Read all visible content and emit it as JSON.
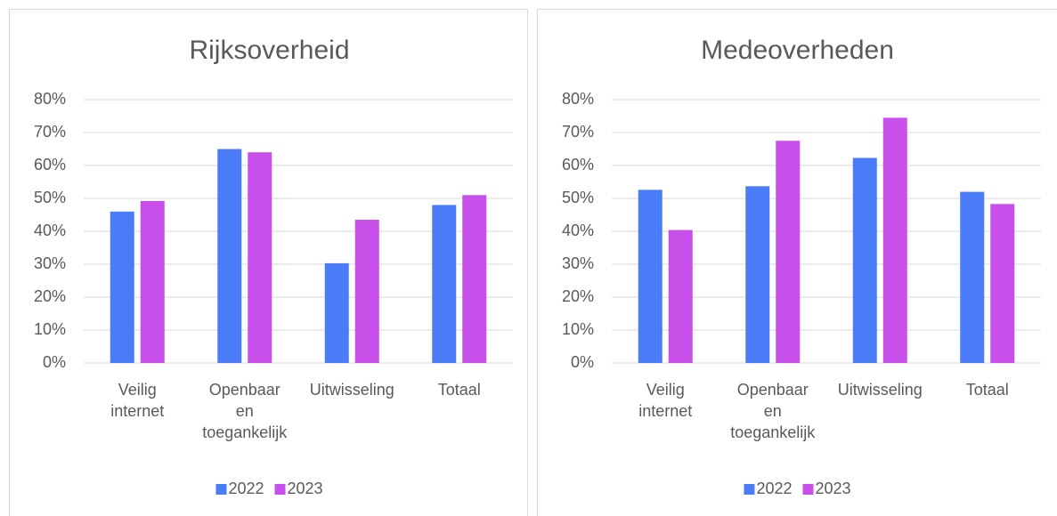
{
  "chart_data": [
    {
      "type": "bar",
      "title": "Rijksoverheid",
      "categories": [
        "Veilig internet",
        "Openbaar en toegankelijk",
        "Uitwisseling",
        "Totaal"
      ],
      "series": [
        {
          "name": "2022",
          "color": "#4a7cf7",
          "values": [
            46,
            65,
            30.3,
            48
          ]
        },
        {
          "name": "2023",
          "color": "#c94fea",
          "values": [
            49.2,
            64,
            43.5,
            51
          ]
        }
      ],
      "ylim": [
        0,
        80
      ],
      "yticks": [
        {
          "value": 0,
          "label": "0%"
        },
        {
          "value": 10,
          "label": "10%"
        },
        {
          "value": 20,
          "label": "20%"
        },
        {
          "value": 30,
          "label": "30%"
        },
        {
          "value": 40,
          "label": "40%"
        },
        {
          "value": 50,
          "label": "50%"
        },
        {
          "value": 60,
          "label": "60%"
        },
        {
          "value": 70,
          "label": "70%"
        },
        {
          "value": 80,
          "label": "80%"
        }
      ],
      "grid": true,
      "legend": "bottom"
    },
    {
      "type": "bar",
      "title": "Medeoverheden",
      "categories": [
        "Veilig internet",
        "Openbaar en toegankelijk",
        "Uitwisseling",
        "Totaal"
      ],
      "series": [
        {
          "name": "2022",
          "color": "#4a7cf7",
          "values": [
            52.6,
            53.7,
            62.3,
            52
          ]
        },
        {
          "name": "2023",
          "color": "#c94fea",
          "values": [
            40.4,
            67.5,
            74.5,
            48.3
          ]
        }
      ],
      "ylim": [
        0,
        80
      ],
      "yticks": [
        {
          "value": 0,
          "label": "0%"
        },
        {
          "value": 10,
          "label": "10%"
        },
        {
          "value": 20,
          "label": "20%"
        },
        {
          "value": 30,
          "label": "30%"
        },
        {
          "value": 40,
          "label": "40%"
        },
        {
          "value": 50,
          "label": "50%"
        },
        {
          "value": 60,
          "label": "60%"
        },
        {
          "value": 70,
          "label": "70%"
        },
        {
          "value": 80,
          "label": "80%"
        }
      ],
      "grid": true,
      "legend": "bottom"
    }
  ]
}
